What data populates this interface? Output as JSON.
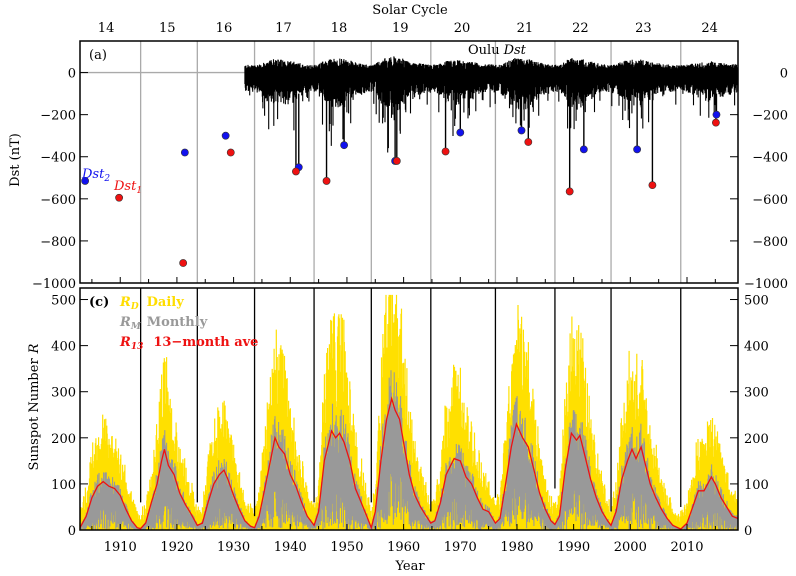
{
  "chart_data": [
    {
      "panel": "a",
      "type": "line",
      "panel_label": "(a)",
      "top_axis_title": "Solar Cycle",
      "solar_cycles": [
        "14",
        "15",
        "16",
        "17",
        "18",
        "19",
        "20",
        "21",
        "22",
        "23",
        "24"
      ],
      "cycle_boundaries": [
        1913.6,
        1923.6,
        1933.7,
        1944.2,
        1954.3,
        1964.8,
        1976.2,
        1986.7,
        1996.6,
        2008.9
      ],
      "cycle_centers": [
        1907.5,
        1918.3,
        1928.3,
        1938.8,
        1948.6,
        1959.4,
        1970.3,
        1981.4,
        1991.2,
        2002.3,
        2014.0
      ],
      "ylabel": "Dst (nT)",
      "ylim": [
        -1000,
        150
      ],
      "xlim": [
        1902.9,
        2019.0
      ],
      "yticks": [
        0,
        -200,
        -400,
        -600,
        -800,
        -1000
      ],
      "ytick_labels": [
        "0",
        "−200",
        "−400",
        "−600",
        "−800",
        "−1000"
      ],
      "series_label": "Oulu Dst",
      "series_label_parts": [
        "Oulu",
        "Dst"
      ],
      "dst_series_start": 1932.0,
      "dst_series_end": 2019.0,
      "dst2_label": "Dst",
      "dst2_sub": "2",
      "dst1_label": "Dst",
      "dst1_sub": "1",
      "colors": {
        "dst1": "#ee1111",
        "dst2": "#1111ee",
        "trace": "#000000",
        "grid": "#aaaaaa"
      },
      "dst2_points": [
        {
          "year": 1903.8,
          "value": -515
        },
        {
          "year": 1921.4,
          "value": -380
        },
        {
          "year": 1928.6,
          "value": -300
        },
        {
          "year": 1941.5,
          "value": -450
        },
        {
          "year": 1949.5,
          "value": -345
        },
        {
          "year": 1958.5,
          "value": -420
        },
        {
          "year": 1970.0,
          "value": -285
        },
        {
          "year": 1980.8,
          "value": -275
        },
        {
          "year": 1991.8,
          "value": -365
        },
        {
          "year": 2001.2,
          "value": -365
        },
        {
          "year": 2015.2,
          "value": -200
        }
      ],
      "dst1_points": [
        {
          "year": 1909.8,
          "value": -595
        },
        {
          "year": 1921.1,
          "value": -905
        },
        {
          "year": 1929.5,
          "value": -380
        },
        {
          "year": 1941.0,
          "value": -470
        },
        {
          "year": 1946.4,
          "value": -515
        },
        {
          "year": 1958.8,
          "value": -420
        },
        {
          "year": 1967.4,
          "value": -375
        },
        {
          "year": 1982.0,
          "value": -330
        },
        {
          "year": 1989.3,
          "value": -565
        },
        {
          "year": 2003.9,
          "value": -535
        },
        {
          "year": 2015.1,
          "value": -238
        }
      ]
    },
    {
      "panel": "c",
      "type": "area",
      "panel_label": "(c)",
      "xlabel": "Year",
      "ylabel": "Sunspot Number R",
      "ylabel_parts": [
        "Sunspot Number",
        "R"
      ],
      "xlim": [
        1902.9,
        2019.0
      ],
      "ylim": [
        0,
        525
      ],
      "xticks": [
        1910,
        1920,
        1930,
        1940,
        1950,
        1960,
        1970,
        1980,
        1990,
        2000,
        2010
      ],
      "xtick_labels": [
        "1910",
        "1920",
        "1930",
        "1940",
        "1950",
        "1960",
        "1970",
        "1980",
        "1990",
        "2000",
        "2010"
      ],
      "yticks": [
        0,
        100,
        200,
        300,
        400,
        500
      ],
      "ytick_labels": [
        "0",
        "100",
        "200",
        "300",
        "400",
        "500"
      ],
      "legend": [
        {
          "symbol": "R",
          "sub": "D",
          "label": "Daily",
          "color": "#ffdd00"
        },
        {
          "symbol": "R",
          "sub": "M",
          "label": "Monthly",
          "color": "#999999"
        },
        {
          "symbol": "R",
          "sub": "13",
          "label": "13−month ave",
          "color": "#ee1111"
        }
      ],
      "legend_placement": "top-left",
      "cycle_boundary_line_tops": [
        60,
        60,
        30,
        60,
        60,
        40,
        70,
        90,
        40,
        50
      ],
      "series": [
        {
          "name": "R13 13-month ave",
          "x": [
            1902.9,
            1904.0,
            1905.0,
            1906.0,
            1907.0,
            1908.0,
            1909.0,
            1910.0,
            1911.0,
            1912.0,
            1913.0,
            1913.6,
            1914.5,
            1915.5,
            1916.5,
            1917.3,
            1917.8,
            1918.5,
            1919.5,
            1920.5,
            1921.5,
            1922.5,
            1923.6,
            1924.5,
            1925.5,
            1926.5,
            1927.5,
            1928.3,
            1929.0,
            1930.0,
            1931.0,
            1932.0,
            1933.0,
            1933.7,
            1934.5,
            1935.5,
            1936.5,
            1937.3,
            1938.0,
            1939.0,
            1940.0,
            1941.0,
            1942.0,
            1943.0,
            1944.2,
            1945.0,
            1946.0,
            1947.3,
            1948.0,
            1948.7,
            1949.5,
            1950.5,
            1951.5,
            1952.5,
            1953.5,
            1954.3,
            1955.0,
            1956.0,
            1957.0,
            1957.9,
            1958.5,
            1959.3,
            1960.0,
            1961.0,
            1962.0,
            1963.0,
            1964.0,
            1964.8,
            1965.5,
            1966.5,
            1967.5,
            1968.9,
            1970.0,
            1971.0,
            1972.0,
            1973.0,
            1974.0,
            1975.0,
            1976.2,
            1977.0,
            1978.0,
            1979.0,
            1979.9,
            1981.0,
            1982.0,
            1983.0,
            1984.0,
            1985.0,
            1986.0,
            1986.7,
            1987.5,
            1988.5,
            1989.6,
            1990.5,
            1991.1,
            1992.0,
            1993.0,
            1994.0,
            1995.0,
            1996.0,
            1996.6,
            1997.5,
            1998.5,
            1999.5,
            2000.3,
            2001.0,
            2001.9,
            2002.5,
            2003.5,
            2004.5,
            2005.5,
            2006.5,
            2007.5,
            2008.9,
            2010.0,
            2011.0,
            2012.0,
            2013.0,
            2014.3,
            2015.0,
            2016.0,
            2017.0,
            2018.0,
            2019.0
          ],
          "values": [
            5,
            30,
            70,
            95,
            105,
            95,
            90,
            75,
            45,
            20,
            5,
            3,
            15,
            60,
            100,
            150,
            175,
            140,
            120,
            80,
            55,
            35,
            10,
            15,
            60,
            100,
            120,
            130,
            110,
            75,
            45,
            20,
            8,
            5,
            30,
            90,
            150,
            200,
            180,
            165,
            120,
            95,
            60,
            30,
            10,
            40,
            150,
            215,
            200,
            210,
            190,
            150,
            90,
            60,
            30,
            5,
            40,
            150,
            240,
            285,
            260,
            240,
            190,
            120,
            75,
            50,
            30,
            15,
            20,
            60,
            120,
            155,
            150,
            115,
            100,
            70,
            45,
            40,
            15,
            25,
            100,
            180,
            230,
            200,
            180,
            130,
            80,
            45,
            20,
            12,
            30,
            130,
            210,
            195,
            205,
            160,
            110,
            70,
            40,
            20,
            10,
            40,
            110,
            150,
            175,
            155,
            180,
            150,
            100,
            70,
            45,
            25,
            10,
            2,
            15,
            50,
            85,
            85,
            115,
            100,
            70,
            50,
            30,
            25
          ]
        },
        {
          "name": "RM Monthly",
          "note": "monthly noise band around R13; approximate peak ~1.3x R13"
        },
        {
          "name": "RD Daily",
          "note": "daily noise band; cycle maxima approx",
          "cycle_max_daily": [
            {
              "cycle": "14",
              "year": 1906.0,
              "value": 305
            },
            {
              "cycle": "15",
              "year": 1917.5,
              "value": 445
            },
            {
              "cycle": "16",
              "year": 1928.0,
              "value": 285
            },
            {
              "cycle": "17",
              "year": 1938.0,
              "value": 385
            },
            {
              "cycle": "18",
              "year": 1947.5,
              "value": 455
            },
            {
              "cycle": "19",
              "year": 1957.5,
              "value": 500
            },
            {
              "cycle": "20",
              "year": 1969.0,
              "value": 305
            },
            {
              "cycle": "21",
              "year": 1979.5,
              "value": 430
            },
            {
              "cycle": "22",
              "year": 1989.5,
              "value": 410
            },
            {
              "cycle": "23",
              "year": 2000.5,
              "value": 355
            },
            {
              "cycle": "24",
              "year": 2014.0,
              "value": 215
            }
          ]
        }
      ]
    }
  ]
}
